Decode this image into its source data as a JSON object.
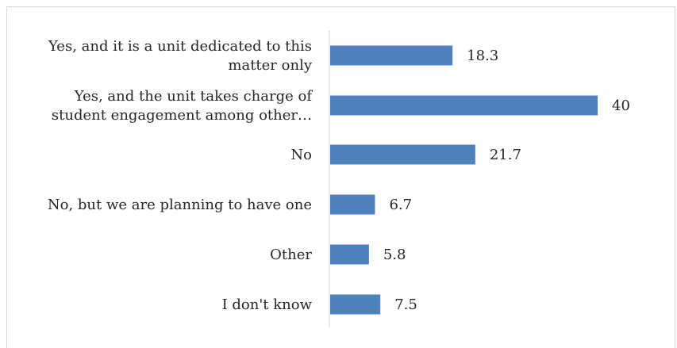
{
  "chart_data": {
    "type": "bar",
    "orientation": "horizontal",
    "title": "",
    "xlabel": "",
    "ylabel": "",
    "categories": [
      [
        "Yes, and it is a unit dedicated to this",
        "matter only"
      ],
      [
        "Yes, and the unit takes charge of",
        "student engagement among other…"
      ],
      [
        "No"
      ],
      [
        "No, but we are planning to have one"
      ],
      [
        "Other"
      ],
      [
        "I don't know"
      ]
    ],
    "values": [
      18.3,
      40,
      21.7,
      6.7,
      5.8,
      7.5
    ],
    "value_labels": [
      "18.3",
      "40",
      "21.7",
      "6.7",
      "5.8",
      "7.5"
    ],
    "xlim": [
      0,
      45
    ],
    "grid": false,
    "legend": "none",
    "colors": {
      "bar": "#4f81bd",
      "axis": "#d9d9d9",
      "text": "#262626"
    }
  }
}
